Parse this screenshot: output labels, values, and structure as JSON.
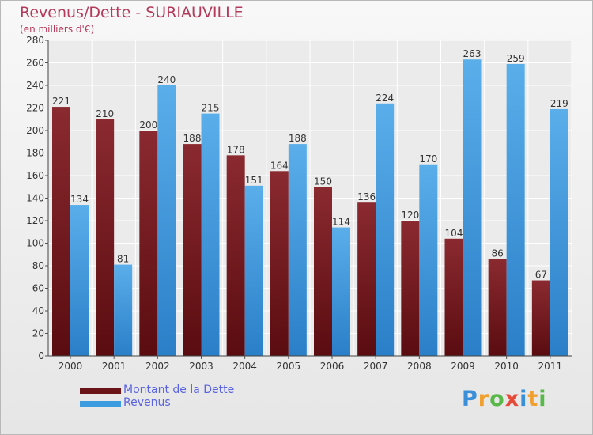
{
  "header": {
    "title": "Revenus/Dette - SURIAUVILLE",
    "subtitle": "(en milliers d'€)"
  },
  "logo_text": "Proxiti",
  "colors": {
    "title": "#b33a5a",
    "dette": "#7a1f25",
    "revenus": "#3d9be0",
    "legend_text": "#5a63e0"
  },
  "chart_data": {
    "type": "bar",
    "title": "Revenus/Dette - SURIAUVILLE",
    "subtitle": "(en milliers d'€)",
    "categories": [
      "2000",
      "2001",
      "2002",
      "2003",
      "2004",
      "2005",
      "2006",
      "2007",
      "2008",
      "2009",
      "2010",
      "2011"
    ],
    "series": [
      {
        "name": "Montant de la Dette",
        "values": [
          221,
          210,
          200,
          188,
          178,
          164,
          150,
          136,
          120,
          104,
          86,
          67
        ]
      },
      {
        "name": "Revenus",
        "values": [
          134,
          81,
          240,
          215,
          151,
          188,
          114,
          224,
          170,
          263,
          259,
          219
        ]
      }
    ],
    "yticks": [
      0,
      20,
      40,
      60,
      80,
      100,
      120,
      140,
      160,
      180,
      200,
      220,
      240,
      260,
      280
    ],
    "ylim": [
      0,
      280
    ],
    "grid": true,
    "legend_position": "bottom-left",
    "data_labels": true
  }
}
